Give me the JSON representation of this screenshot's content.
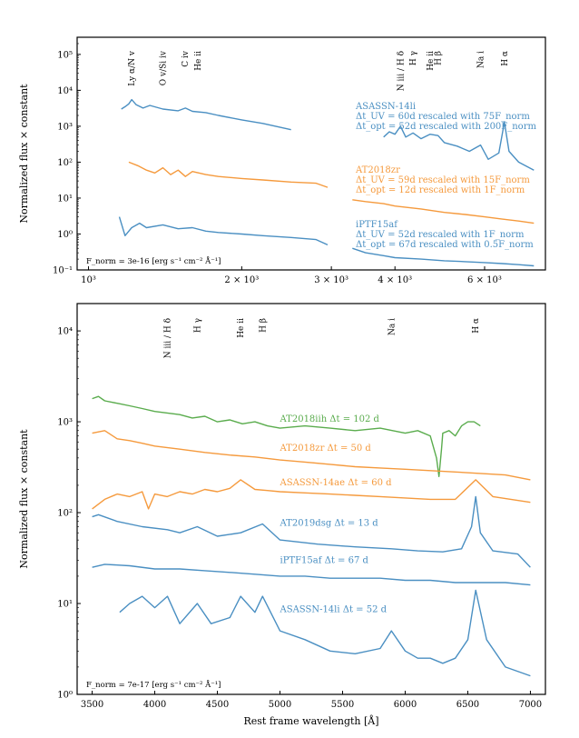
{
  "figure": {
    "ylabel": "Normalized flux × constant"
  },
  "chart_data": [
    {
      "type": "line",
      "panel": "top",
      "ylabel": "Normalized flux × constant",
      "xscale": "log",
      "yscale": "log",
      "xlim": [
        950,
        7900
      ],
      "ylim": [
        0.1,
        300000
      ],
      "xticks": [
        {
          "v": 1000,
          "label": "10³"
        },
        {
          "v": 2000,
          "label": "2 × 10³"
        },
        {
          "v": 3000,
          "label": "3 × 10³"
        },
        {
          "v": 4000,
          "label": "4 × 10³"
        },
        {
          "v": 6000,
          "label": "6 × 10³"
        }
      ],
      "yticks": [
        {
          "v": 0.1,
          "label": "10⁻¹"
        },
        {
          "v": 1,
          "label": "10⁰"
        },
        {
          "v": 10,
          "label": "10¹"
        },
        {
          "v": 100,
          "label": "10²"
        },
        {
          "v": 1000,
          "label": "10³"
        },
        {
          "v": 10000,
          "label": "10⁴"
        },
        {
          "v": 100000,
          "label": "10⁵"
        }
      ],
      "lines": [
        {
          "x": 1216,
          "label": "Ly α/N v"
        },
        {
          "x": 1400,
          "label": "O v/Si iv"
        },
        {
          "x": 1549,
          "label": "C iv"
        },
        {
          "x": 1640,
          "label": "He ii"
        },
        {
          "x": 4101,
          "label": "N iii / H δ"
        },
        {
          "x": 4340,
          "label": "H γ"
        },
        {
          "x": 4686,
          "label": "He ii"
        },
        {
          "x": 4861,
          "label": "H β"
        },
        {
          "x": 5890,
          "label": "Na i"
        },
        {
          "x": 6563,
          "label": "H α"
        }
      ],
      "series": [
        {
          "name": "ASASSN-14li",
          "color": "#4a8fc2",
          "label_lines": [
            "ASASSN-14li",
            "Δt_UV = 60d rescaled with 75F_norm",
            "Δt_opt = 52d rescaled with 200F_norm"
          ],
          "segments": [
            {
              "x": [
                1160,
                1180,
                1200,
                1216,
                1240,
                1280,
                1320,
                1400,
                1500,
                1550,
                1600,
                1700,
                1800,
                2000,
                2200,
                2500
              ],
              "y": [
                3000,
                3500,
                4200,
                5500,
                4000,
                3200,
                3800,
                3000,
                2700,
                3200,
                2600,
                2400,
                2000,
                1500,
                1200,
                800
              ]
            },
            {
              "x": [
                3800,
                3900,
                4000,
                4101,
                4200,
                4340,
                4500,
                4686,
                4861,
                5000,
                5300,
                5600,
                5890,
                6100,
                6400,
                6563,
                6700,
                7000,
                7500
              ],
              "y": [
                500,
                700,
                600,
                1000,
                500,
                650,
                450,
                600,
                550,
                350,
                280,
                200,
                300,
                120,
                180,
                1300,
                200,
                100,
                60
              ]
            }
          ]
        },
        {
          "name": "AT2018zr",
          "color": "#f59a3d",
          "label_lines": [
            "AT2018zr",
            "Δt_UV = 59d rescaled with 15F_norm",
            "Δt_opt = 12d rescaled with 1F_norm"
          ],
          "segments": [
            {
              "x": [
                1200,
                1250,
                1300,
                1350,
                1400,
                1450,
                1500,
                1550,
                1600,
                1700,
                1800,
                2000,
                2200,
                2500,
                2800,
                2950
              ],
              "y": [
                100,
                80,
                60,
                50,
                70,
                45,
                60,
                40,
                55,
                45,
                40,
                35,
                32,
                28,
                26,
                20
              ]
            },
            {
              "x": [
                3300,
                3500,
                3800,
                4000,
                4500,
                5000,
                5500,
                6000,
                6500,
                7000,
                7500
              ],
              "y": [
                9,
                8,
                7,
                6,
                5,
                4,
                3.5,
                3,
                2.6,
                2.3,
                2
              ]
            }
          ]
        },
        {
          "name": "iPTF15af",
          "color": "#4a8fc2",
          "label_lines": [
            "iPTF15af",
            "Δt_UV = 52d rescaled with 1F_norm",
            "Δt_opt = 67d rescaled with 0.5F_norm"
          ],
          "segments": [
            {
              "x": [
                1150,
                1180,
                1216,
                1260,
                1300,
                1400,
                1500,
                1600,
                1700,
                1800,
                2000,
                2200,
                2500,
                2800,
                2950
              ],
              "y": [
                3,
                0.9,
                1.5,
                2,
                1.5,
                1.8,
                1.4,
                1.5,
                1.2,
                1.1,
                1,
                0.9,
                0.8,
                0.7,
                0.5
              ]
            },
            {
              "x": [
                3300,
                3500,
                3800,
                4000,
                4500,
                5000,
                5500,
                6000,
                6500,
                7000,
                7500
              ],
              "y": [
                0.4,
                0.3,
                0.25,
                0.22,
                0.2,
                0.18,
                0.17,
                0.16,
                0.15,
                0.14,
                0.13
              ]
            }
          ]
        }
      ],
      "annotation": "F_norm = 3e-16 [erg s⁻¹ cm⁻² Å⁻¹]"
    },
    {
      "type": "line",
      "panel": "bottom",
      "xlabel": "Rest frame wavelength [Å]",
      "ylabel": "Normalized flux × constant",
      "xscale": "linear",
      "yscale": "log",
      "xlim": [
        3380,
        7120
      ],
      "ylim": [
        1,
        20000
      ],
      "xticks": [
        {
          "v": 3500,
          "label": "3500"
        },
        {
          "v": 4000,
          "label": "4000"
        },
        {
          "v": 4500,
          "label": "4500"
        },
        {
          "v": 5000,
          "label": "5000"
        },
        {
          "v": 5500,
          "label": "5500"
        },
        {
          "v": 6000,
          "label": "6000"
        },
        {
          "v": 6500,
          "label": "6500"
        },
        {
          "v": 7000,
          "label": "7000"
        }
      ],
      "yticks": [
        {
          "v": 1,
          "label": "10⁰"
        },
        {
          "v": 10,
          "label": "10¹"
        },
        {
          "v": 100,
          "label": "10²"
        },
        {
          "v": 1000,
          "label": "10³"
        },
        {
          "v": 10000,
          "label": "10⁴"
        }
      ],
      "lines": [
        {
          "x": 4101,
          "label": "N iii / H δ"
        },
        {
          "x": 4340,
          "label": "H γ"
        },
        {
          "x": 4686,
          "label": "He ii"
        },
        {
          "x": 4861,
          "label": "H β"
        },
        {
          "x": 5890,
          "label": "Na i"
        },
        {
          "x": 6563,
          "label": "H α"
        }
      ],
      "series": [
        {
          "name": "AT2018iih",
          "label": "AT2018iih Δt = 102 d",
          "color": "#5aac4d",
          "label_x": 5000,
          "label_y": 1000,
          "x": [
            3500,
            3550,
            3600,
            3700,
            3800,
            3900,
            4000,
            4100,
            4200,
            4300,
            4400,
            4500,
            4600,
            4700,
            4800,
            4900,
            5000,
            5200,
            5400,
            5600,
            5800,
            6000,
            6100,
            6200,
            6250,
            6270,
            6290,
            6300,
            6350,
            6400,
            6450,
            6500,
            6550,
            6600
          ],
          "y": [
            1800,
            1900,
            1700,
            1600,
            1500,
            1400,
            1300,
            1250,
            1200,
            1100,
            1150,
            1000,
            1050,
            950,
            1000,
            900,
            850,
            900,
            850,
            800,
            850,
            750,
            800,
            700,
            400,
            250,
            500,
            750,
            800,
            700,
            900,
            1000,
            1000,
            900
          ]
        },
        {
          "name": "AT2018zr",
          "label": "AT2018zr Δt = 50 d",
          "color": "#f59a3d",
          "label_x": 5000,
          "label_y": 480,
          "x": [
            3500,
            3600,
            3700,
            3800,
            3900,
            4000,
            4200,
            4400,
            4600,
            4800,
            5000,
            5200,
            5400,
            5600,
            5800,
            6000,
            6200,
            6400,
            6600,
            6800,
            7000
          ],
          "y": [
            750,
            800,
            650,
            620,
            580,
            540,
            500,
            460,
            430,
            410,
            380,
            360,
            340,
            320,
            310,
            300,
            290,
            280,
            270,
            260,
            230
          ]
        },
        {
          "name": "ASASSN-14ae",
          "label": "ASASSN-14ae Δt = 60 d",
          "color": "#f59a3d",
          "label_x": 5000,
          "label_y": 200,
          "x": [
            3500,
            3600,
            3700,
            3800,
            3900,
            3950,
            4000,
            4100,
            4200,
            4300,
            4400,
            4500,
            4600,
            4686,
            4800,
            4900,
            5000,
            5200,
            5400,
            5600,
            5800,
            6000,
            6200,
            6400,
            6563,
            6700,
            7000
          ],
          "y": [
            110,
            140,
            160,
            150,
            170,
            110,
            160,
            150,
            170,
            160,
            180,
            170,
            185,
            230,
            180,
            175,
            170,
            165,
            160,
            155,
            150,
            145,
            140,
            140,
            230,
            150,
            130
          ]
        },
        {
          "name": "AT2019dsg",
          "label": "AT2019dsg Δt = 13 d",
          "color": "#4a8fc2",
          "label_x": 5000,
          "label_y": 72,
          "x": [
            3500,
            3550,
            3700,
            3900,
            4101,
            4200,
            4340,
            4500,
            4686,
            4861,
            5000,
            5300,
            5600,
            5890,
            6100,
            6300,
            6450,
            6530,
            6563,
            6600,
            6700,
            6900,
            7000
          ],
          "y": [
            90,
            95,
            80,
            70,
            65,
            60,
            70,
            55,
            60,
            75,
            50,
            45,
            42,
            40,
            38,
            37,
            40,
            70,
            150,
            60,
            38,
            35,
            25
          ]
        },
        {
          "name": "iPTF15af",
          "label": "iPTF15af Δt = 67 d",
          "color": "#4a8fc2",
          "label_x": 5000,
          "label_y": 28,
          "x": [
            3500,
            3600,
            3800,
            4000,
            4200,
            4400,
            4600,
            4800,
            5000,
            5200,
            5400,
            5600,
            5800,
            6000,
            6200,
            6400,
            6600,
            6800,
            7000
          ],
          "y": [
            25,
            27,
            26,
            24,
            24,
            23,
            22,
            21,
            20,
            20,
            19,
            19,
            19,
            18,
            18,
            17,
            17,
            17,
            16
          ]
        },
        {
          "name": "ASASSN-14li",
          "label": "ASASSN-14li Δt = 52 d",
          "color": "#4a8fc2",
          "label_x": 5000,
          "label_y": 8,
          "x": [
            3720,
            3800,
            3900,
            4000,
            4101,
            4200,
            4340,
            4450,
            4600,
            4686,
            4800,
            4861,
            5000,
            5200,
            5400,
            5600,
            5800,
            5890,
            6000,
            6100,
            6200,
            6300,
            6400,
            6500,
            6563,
            6650,
            6800,
            7000
          ],
          "y": [
            8,
            10,
            12,
            9,
            12,
            6,
            10,
            6,
            7,
            12,
            8,
            12,
            5,
            4,
            3,
            2.8,
            3.2,
            5,
            3,
            2.5,
            2.5,
            2.2,
            2.5,
            4,
            14,
            4,
            2,
            1.6
          ]
        }
      ],
      "annotation": "F_norm = 7e-17 [erg s⁻¹ cm⁻² Å⁻¹]"
    }
  ]
}
